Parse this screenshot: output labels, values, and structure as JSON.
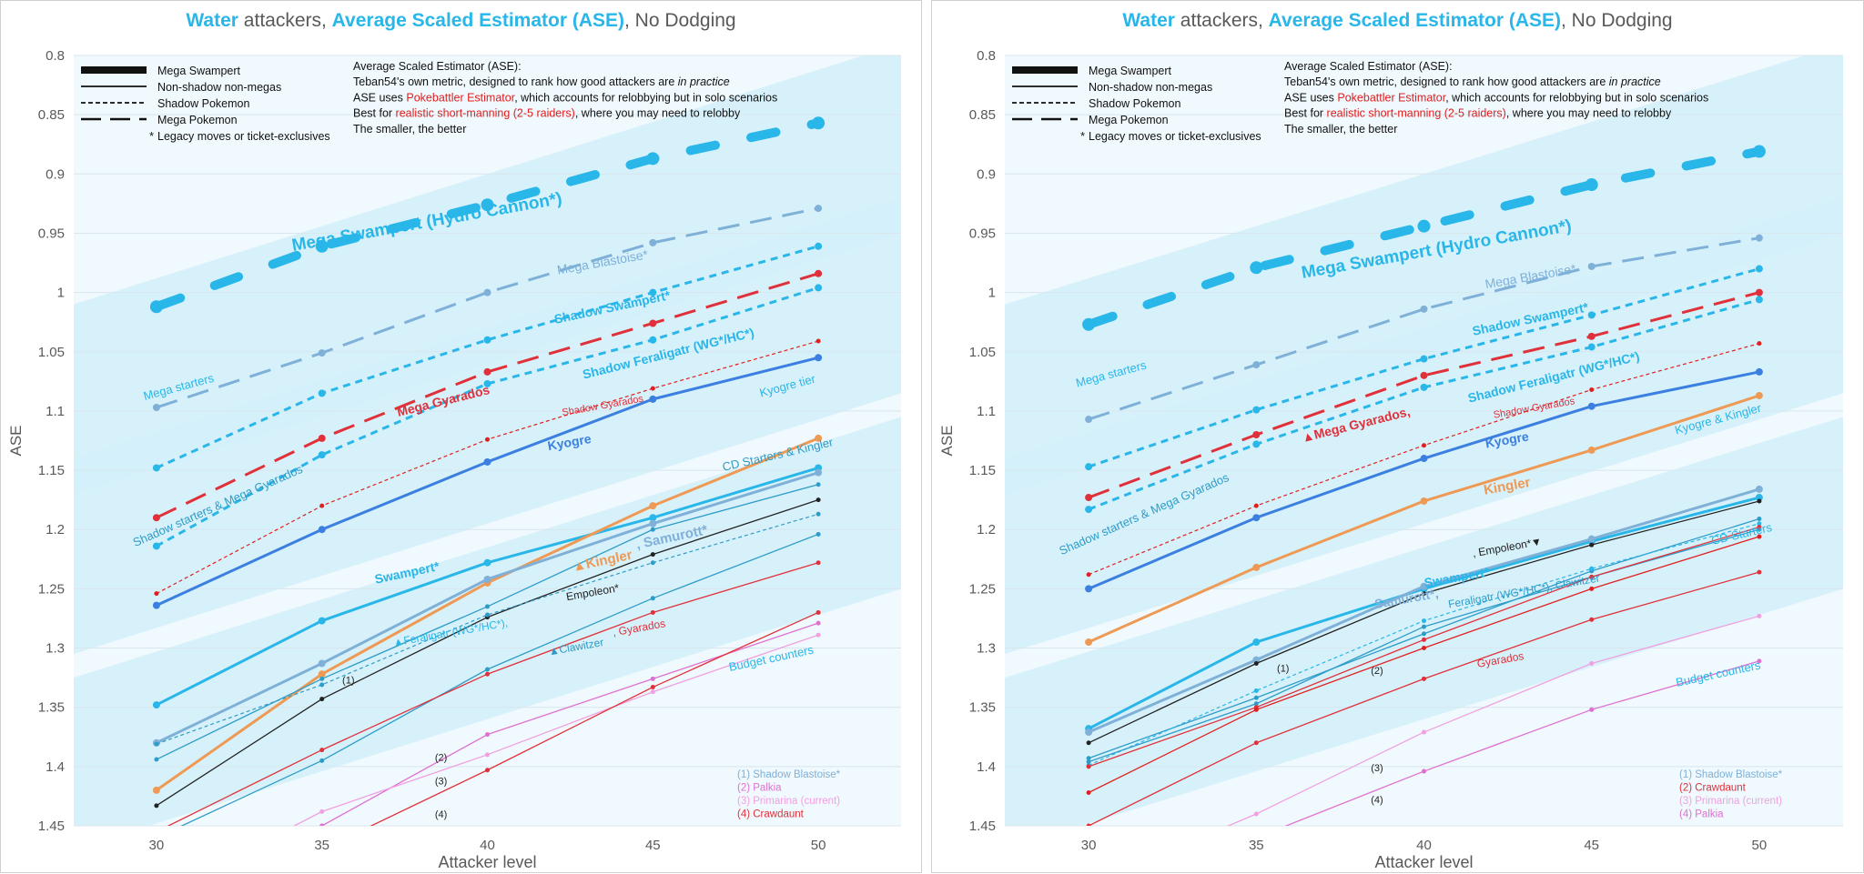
{
  "colors": {
    "cyan": "#29b6e8",
    "steel": "#7fb0d8",
    "blue": "#3b7fe0",
    "orange": "#ee9a55",
    "red": "#e0303a",
    "darkred": "#e02020",
    "black": "#222222",
    "teal": "#2e9cc8",
    "pink": "#f0a0e0",
    "magenta": "#e070d0",
    "band": "#d4effa",
    "plot_bg": "#f0f9fd"
  },
  "chart_data": [
    {
      "type": "line",
      "title": {
        "part1": "Water",
        "part2": " attackers, ",
        "part3": "Average Scaled Estimator (ASE)",
        "part4": ", No Dodging"
      },
      "xlabel": "Attacker level",
      "ylabel": "ASE",
      "ylim": [
        0.8,
        1.45
      ],
      "y_inverted": true,
      "x": [
        30,
        35,
        40,
        45,
        50
      ],
      "y_ticks": [
        "0.8",
        "0.85",
        "0.9",
        "0.95",
        "1",
        "1.05",
        "1.1",
        "1.15",
        "1.2",
        "1.25",
        "1.3",
        "1.35",
        "1.4",
        "1.45"
      ],
      "legend": {
        "line_types": [
          "Mega Swampert",
          "Non-shadow non-megas",
          "Shadow Pokemon",
          "Mega Pokemon",
          "Legacy moves or ticket-exclusives"
        ],
        "legacy_mark": "*",
        "notes": [
          {
            "text": "Average Scaled Estimator (ASE):"
          },
          {
            "text": "Teban54's own metric, designed to rank how good attackers are ",
            "em": "in practice"
          },
          {
            "text": "ASE uses ",
            "red": "Pokebattler Estimator",
            "after": ", which accounts for relobbying but in solo scenarios"
          },
          {
            "text": "Best for ",
            "red": "realistic short-manning (2-5 raiders)",
            "after": ", where you may need to relobby"
          },
          {
            "text": "The smaller, the better"
          }
        ]
      },
      "series": [
        {
          "color": "cyan",
          "style": "mega-swampert",
          "values": [
            1.012,
            0.961,
            0.926,
            0.887,
            0.857
          ]
        },
        {
          "color": "steel",
          "style": "mega",
          "values": [
            1.097,
            1.051,
            1.0,
            0.958,
            0.929
          ]
        },
        {
          "color": "cyan",
          "style": "shadow",
          "values": [
            1.148,
            1.085,
            1.04,
            1.0,
            0.961
          ]
        },
        {
          "color": "red",
          "style": "mega",
          "values": [
            1.19,
            1.123,
            1.067,
            1.026,
            0.984
          ]
        },
        {
          "color": "cyan",
          "style": "shadow",
          "values": [
            1.214,
            1.137,
            1.077,
            1.04,
            0.996
          ]
        },
        {
          "color": "darkred",
          "style": "shadow-thin",
          "values": [
            1.254,
            1.18,
            1.124,
            1.081,
            1.041
          ]
        },
        {
          "color": "blue",
          "style": "solid",
          "values": [
            1.264,
            1.2,
            1.143,
            1.09,
            1.055
          ]
        },
        {
          "color": "cyan",
          "style": "solid",
          "values": [
            1.348,
            1.277,
            1.228,
            1.19,
            1.148
          ]
        },
        {
          "color": "orange",
          "style": "solid",
          "values": [
            1.42,
            1.322,
            1.245,
            1.18,
            1.123
          ]
        },
        {
          "color": "steel",
          "style": "solid",
          "values": [
            1.38,
            1.313,
            1.242,
            1.195,
            1.152
          ]
        },
        {
          "color": "black",
          "style": "thin",
          "values": [
            1.433,
            1.343,
            1.274,
            1.221,
            1.175
          ]
        },
        {
          "color": "teal",
          "style": "thin",
          "values": [
            1.394,
            1.326,
            1.265,
            1.2,
            1.162
          ]
        },
        {
          "color": "teal",
          "style": "shadow-thin",
          "values": [
            1.381,
            1.331,
            1.272,
            1.228,
            1.187
          ]
        },
        {
          "color": "teal",
          "style": "thin",
          "values": [
            1.46,
            1.395,
            1.318,
            1.258,
            1.204
          ]
        },
        {
          "color": "red",
          "style": "thin",
          "values": [
            1.455,
            1.386,
            1.322,
            1.27,
            1.228
          ]
        },
        {
          "color": "magenta",
          "style": "thin",
          "values": [
            1.5,
            1.45,
            1.373,
            1.326,
            1.279
          ]
        },
        {
          "color": "pink",
          "style": "thin",
          "values": [
            1.51,
            1.438,
            1.39,
            1.337,
            1.289
          ]
        },
        {
          "color": "red",
          "style": "thin",
          "values": [
            1.52,
            1.47,
            1.403,
            1.333,
            1.27
          ]
        }
      ],
      "annotations": [
        {
          "text": "Mega Swampert (Hydro Cannon*)",
          "color": "cyan",
          "x": 38.2,
          "y": 0.945,
          "size": 19,
          "bold": true,
          "rot": -10
        },
        {
          "text": "Mega Blastoise*",
          "color": "steel",
          "x": 43.5,
          "y": 0.978,
          "size": 14,
          "rot": -10
        },
        {
          "text": "Shadow Swampert*",
          "color": "cyan",
          "x": 43.8,
          "y": 1.016,
          "size": 14,
          "bold": true,
          "rot": -12
        },
        {
          "text": "Mega Gyarados",
          "color": "red",
          "x": 38.7,
          "y": 1.095,
          "size": 14,
          "bold": true,
          "rot": -14
        },
        {
          "text": "Shadow Feraligatr (WG*/HC*)",
          "color": "cyan",
          "x": 45.5,
          "y": 1.055,
          "size": 14,
          "bold": true,
          "rot": -14
        },
        {
          "text": "Shadow Gyarados",
          "color": "red",
          "x": 43.5,
          "y": 1.098,
          "size": 11,
          "rot": -10
        },
        {
          "text": "Kyogre",
          "color": "blue",
          "x": 42.5,
          "y": 1.13,
          "size": 14,
          "bold": true,
          "rot": -10
        },
        {
          "text": "Kyogre tier",
          "color": "cyan",
          "x": 49.1,
          "y": 1.082,
          "size": 13,
          "rot": -15
        },
        {
          "text": "CD Starters & Kingler",
          "color": "teal",
          "x": 48.8,
          "y": 1.14,
          "size": 13,
          "rot": -13
        },
        {
          "text": "Mega starters",
          "color": "cyan",
          "x": 30.7,
          "y": 1.083,
          "size": 13,
          "rot": -15
        },
        {
          "text": "Shadow starters & Mega Gyarados",
          "color": "teal",
          "x": 31.9,
          "y": 1.183,
          "size": 13,
          "rot": -24
        },
        {
          "text": "Swampert*",
          "color": "cyan",
          "x": 37.6,
          "y": 1.24,
          "size": 14,
          "bold": true,
          "rot": -12
        },
        {
          "text": "▲Kingler",
          "color": "orange",
          "x": 43.5,
          "y": 1.23,
          "size": 15,
          "bold": true,
          "rot": -12
        },
        {
          "text": ", Samurott*",
          "color": "steel",
          "x": 45.6,
          "y": 1.21,
          "size": 15,
          "bold": true,
          "rot": -12
        },
        {
          "text": "▲Feraligatr (WG*/HC*),",
          "color": "cyan",
          "x": 38.9,
          "y": 1.29,
          "size": 12,
          "rot": -10
        },
        {
          "text": "Empoleon*",
          "color": "black",
          "x": 43.2,
          "y": 1.256,
          "size": 12,
          "rot": -10
        },
        {
          "text": "▲Clawitzer",
          "color": "teal",
          "x": 42.7,
          "y": 1.302,
          "size": 12,
          "rot": -10
        },
        {
          "text": ", Gyarados",
          "color": "red",
          "x": 44.6,
          "y": 1.286,
          "size": 12,
          "rot": -10
        },
        {
          "text": "Budget counters",
          "color": "cyan",
          "x": 48.6,
          "y": 1.312,
          "size": 13,
          "rot": -12
        },
        {
          "text": "(1)",
          "color": "black",
          "x": 35.8,
          "y": 1.33,
          "size": 11,
          "rot": 0
        },
        {
          "text": "(2)",
          "color": "black",
          "x": 38.6,
          "y": 1.395,
          "size": 11,
          "rot": 0
        },
        {
          "text": "(3)",
          "color": "black",
          "x": 38.6,
          "y": 1.415,
          "size": 11,
          "rot": 0
        },
        {
          "text": "(4)",
          "color": "black",
          "x": 38.6,
          "y": 1.443,
          "size": 11,
          "rot": 0
        }
      ],
      "footnotes": [
        {
          "text": "(1) Shadow Blastoise*",
          "color": "steel"
        },
        {
          "text": "(2) Palkia",
          "color": "magenta"
        },
        {
          "text": "(3) Primarina (current)",
          "color": "pink"
        },
        {
          "text": "(4) Crawdaunt",
          "color": "red"
        }
      ]
    },
    {
      "type": "line",
      "title": {
        "part1": "Water",
        "part2": " attackers, ",
        "part3": "Average Scaled Estimator (ASE)",
        "part4": ", No Dodging"
      },
      "xlabel": "Attacker level",
      "ylabel": "ASE",
      "ylim": [
        0.8,
        1.45
      ],
      "y_inverted": true,
      "x": [
        30,
        35,
        40,
        45,
        50
      ],
      "y_ticks": [
        "0.8",
        "0.85",
        "0.9",
        "0.95",
        "1",
        "1.05",
        "1.1",
        "1.15",
        "1.2",
        "1.25",
        "1.3",
        "1.35",
        "1.4",
        "1.45"
      ],
      "legend": {
        "line_types": [
          "Mega Swampert",
          "Non-shadow non-megas",
          "Shadow Pokemon",
          "Mega Pokemon",
          "Legacy moves or ticket-exclusives"
        ],
        "legacy_mark": "*",
        "notes": [
          {
            "text": "Average Scaled Estimator (ASE):"
          },
          {
            "text": "Teban54's own metric, designed to rank how good attackers are ",
            "em": "in practice"
          },
          {
            "text": "ASE uses ",
            "red": "Pokebattler Estimator",
            "after": ", which accounts for relobbying but in solo scenarios"
          },
          {
            "text": "Best for ",
            "red": "realistic short-manning (2-5 raiders)",
            "after": ", where you may need to relobby"
          },
          {
            "text": "The smaller, the better"
          }
        ]
      },
      "series": [
        {
          "color": "cyan",
          "style": "mega-swampert",
          "values": [
            1.027,
            0.979,
            0.944,
            0.909,
            0.881
          ]
        },
        {
          "color": "steel",
          "style": "mega",
          "values": [
            1.107,
            1.061,
            1.014,
            0.978,
            0.954
          ]
        },
        {
          "color": "cyan",
          "style": "shadow",
          "values": [
            1.147,
            1.099,
            1.056,
            1.019,
            0.98
          ]
        },
        {
          "color": "red",
          "style": "mega",
          "values": [
            1.173,
            1.12,
            1.07,
            1.037,
            1.0
          ]
        },
        {
          "color": "cyan",
          "style": "shadow",
          "values": [
            1.183,
            1.128,
            1.08,
            1.046,
            1.006
          ]
        },
        {
          "color": "darkred",
          "style": "shadow-thin",
          "values": [
            1.238,
            1.18,
            1.129,
            1.082,
            1.043
          ]
        },
        {
          "color": "blue",
          "style": "solid",
          "values": [
            1.25,
            1.19,
            1.14,
            1.096,
            1.067
          ]
        },
        {
          "color": "orange",
          "style": "solid",
          "values": [
            1.295,
            1.232,
            1.176,
            1.133,
            1.087
          ]
        },
        {
          "color": "cyan",
          "style": "solid",
          "values": [
            1.368,
            1.295,
            1.25,
            1.21,
            1.173
          ]
        },
        {
          "color": "steel",
          "style": "solid",
          "values": [
            1.371,
            1.31,
            1.248,
            1.208,
            1.166
          ]
        },
        {
          "color": "black",
          "style": "thin",
          "values": [
            1.38,
            1.313,
            1.254,
            1.213,
            1.176
          ]
        },
        {
          "color": "teal",
          "style": "thin",
          "values": [
            1.393,
            1.342,
            1.288,
            1.235,
            1.191
          ]
        },
        {
          "color": "cyan",
          "style": "shadow-thin",
          "values": [
            1.399,
            1.336,
            1.277,
            1.233,
            1.195
          ]
        },
        {
          "color": "teal",
          "style": "thin",
          "values": [
            1.396,
            1.347,
            1.282,
            1.24,
            1.2
          ]
        },
        {
          "color": "red",
          "style": "thin",
          "values": [
            1.4,
            1.35,
            1.293,
            1.24,
            1.198
          ]
        },
        {
          "color": "red",
          "style": "thin",
          "values": [
            1.45,
            1.38,
            1.326,
            1.276,
            1.236
          ]
        },
        {
          "color": "darkred",
          "style": "thin",
          "values": [
            1.422,
            1.352,
            1.3,
            1.25,
            1.206
          ]
        },
        {
          "color": "pink",
          "style": "thin",
          "values": [
            1.5,
            1.44,
            1.371,
            1.313,
            1.273
          ]
        },
        {
          "color": "magenta",
          "style": "thin",
          "values": [
            1.52,
            1.46,
            1.404,
            1.352,
            1.311
          ]
        }
      ],
      "annotations": [
        {
          "text": "Mega Swampert (Hydro Cannon*)",
          "color": "cyan",
          "x": 40.4,
          "y": 0.968,
          "size": 19,
          "bold": true,
          "rot": -10
        },
        {
          "text": "Mega Blastoise*",
          "color": "steel",
          "x": 43.2,
          "y": 0.99,
          "size": 14,
          "rot": -10
        },
        {
          "text": "Shadow Swampert*",
          "color": "cyan",
          "x": 43.2,
          "y": 1.026,
          "size": 14,
          "bold": true,
          "rot": -12
        },
        {
          "text": "▲Mega Gyarados,",
          "color": "red",
          "x": 38.0,
          "y": 1.115,
          "size": 14,
          "bold": true,
          "rot": -14
        },
        {
          "text": "Shadow Feraligatr (WG*/HC*)",
          "color": "cyan",
          "x": 43.9,
          "y": 1.075,
          "size": 14,
          "bold": true,
          "rot": -14
        },
        {
          "text": "Shadow Gyarados",
          "color": "red",
          "x": 43.3,
          "y": 1.1,
          "size": 11,
          "rot": -10
        },
        {
          "text": "Kyogre",
          "color": "blue",
          "x": 42.5,
          "y": 1.128,
          "size": 14,
          "bold": true,
          "rot": -10
        },
        {
          "text": "Kingler",
          "color": "orange",
          "x": 42.5,
          "y": 1.167,
          "size": 15,
          "bold": true,
          "rot": -10
        },
        {
          "text": "Kyogre & Kingler",
          "color": "cyan",
          "x": 48.8,
          "y": 1.11,
          "size": 13,
          "rot": -15
        },
        {
          "text": "CD Starters",
          "color": "cyan",
          "x": 49.5,
          "y": 1.207,
          "size": 13,
          "rot": -13
        },
        {
          "text": "Mega starters",
          "color": "cyan",
          "x": 30.7,
          "y": 1.072,
          "size": 13,
          "rot": -15
        },
        {
          "text": "Shadow starters & Mega Gyarados",
          "color": "teal",
          "x": 31.7,
          "y": 1.19,
          "size": 13,
          "rot": -24
        },
        {
          "text": "Samurott*, ",
          "color": "steel",
          "x": 39.5,
          "y": 1.262,
          "size": 14,
          "bold": true,
          "rot": -10
        },
        {
          "text": "Swampert*",
          "color": "cyan",
          "x": 41.0,
          "y": 1.244,
          "size": 14,
          "bold": true,
          "rot": -10
        },
        {
          "text": ", Empoleon*▼",
          "color": "black",
          "x": 42.5,
          "y": 1.218,
          "size": 12,
          "rot": -10
        },
        {
          "text": "Feraligatr (WG*/HC*), Clawitzer",
          "color": "teal",
          "x": 43.0,
          "y": 1.255,
          "size": 12,
          "rot": -10
        },
        {
          "text": "Gyarados",
          "color": "red",
          "x": 42.3,
          "y": 1.313,
          "size": 12,
          "rot": -10
        },
        {
          "text": "Budget counters",
          "color": "cyan",
          "x": 48.8,
          "y": 1.325,
          "size": 13,
          "rot": -12
        },
        {
          "text": "(1)",
          "color": "black",
          "x": 35.8,
          "y": 1.32,
          "size": 11,
          "rot": 0
        },
        {
          "text": "(2)",
          "color": "black",
          "x": 38.6,
          "y": 1.322,
          "size": 11,
          "rot": 0
        },
        {
          "text": "(3)",
          "color": "black",
          "x": 38.6,
          "y": 1.404,
          "size": 11,
          "rot": 0
        },
        {
          "text": "(4)",
          "color": "black",
          "x": 38.6,
          "y": 1.431,
          "size": 11,
          "rot": 0
        }
      ],
      "footnotes": [
        {
          "text": "(1) Shadow Blastoise*",
          "color": "steel"
        },
        {
          "text": "(2) Crawdaunt",
          "color": "red"
        },
        {
          "text": "(3) Primarina (current)",
          "color": "pink"
        },
        {
          "text": "(4) Palkia",
          "color": "magenta"
        }
      ]
    }
  ]
}
